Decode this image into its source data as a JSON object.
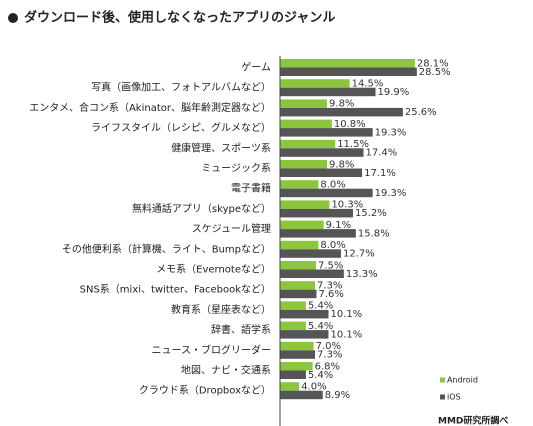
{
  "chart_data": {
    "type": "bar",
    "orientation": "horizontal",
    "title": "ダウンロード後、使用しなくなったアプリのジャンル",
    "categories": [
      "ゲーム",
      "写真（画像加工、フォトアルバムなど）",
      "エンタメ、合コン系（Akinator、脳年齢測定器など）",
      "ライフスタイル（レシピ、グルメなど）",
      "健康管理、スポーツ系",
      "ミュージック系",
      "電子書籍",
      "無料通話アプリ（skypeなど）",
      "スケジュール管理",
      "その他便利系（計算機、ライト、Bumpなど）",
      "メモ系（Evernoteなど）",
      "SNS系（mixi、twitter、Facebookなど）",
      "教育系（星座表など）",
      "辞書、語学系",
      "ニュース・ブログリーダー",
      "地図、ナビ・交通系",
      "クラウド系（Dropboxなど）"
    ],
    "series": [
      {
        "name": "Android",
        "color": "#8cc63e",
        "values": [
          28.1,
          14.5,
          9.8,
          10.8,
          11.5,
          9.8,
          8.0,
          10.3,
          9.1,
          8.0,
          7.5,
          7.3,
          5.4,
          5.4,
          7.0,
          6.8,
          4.0
        ],
        "value_labels": [
          "28.1%",
          "14.5%",
          "9.8%",
          "10.8%",
          "11.5%",
          "9.8%",
          "8.0%",
          "10.3%",
          "9.1%",
          "8.0%",
          "7.5%",
          "7.3%",
          "5.4%",
          "5.4%",
          "7.0%",
          "6.8%",
          "4.0%"
        ]
      },
      {
        "name": "iOS",
        "color": "#555555",
        "values": [
          28.5,
          19.9,
          25.6,
          19.3,
          17.4,
          17.1,
          19.3,
          15.2,
          15.8,
          12.7,
          13.3,
          7.6,
          10.1,
          10.1,
          7.3,
          5.4,
          8.9
        ],
        "value_labels": [
          "28.5%",
          "19.9%",
          "25.6%",
          "19.3%",
          "17.4%",
          "17.1%",
          "19.3%",
          "15.2%",
          "15.8%",
          "12.7%",
          "13.3%",
          "7.6%",
          "10.1%",
          "10.1%",
          "7.3%",
          "5.4%",
          "8.9%"
        ]
      }
    ],
    "xlim": [
      0,
      30
    ],
    "legend": "lower right",
    "source": "MMD研究所調べ"
  }
}
